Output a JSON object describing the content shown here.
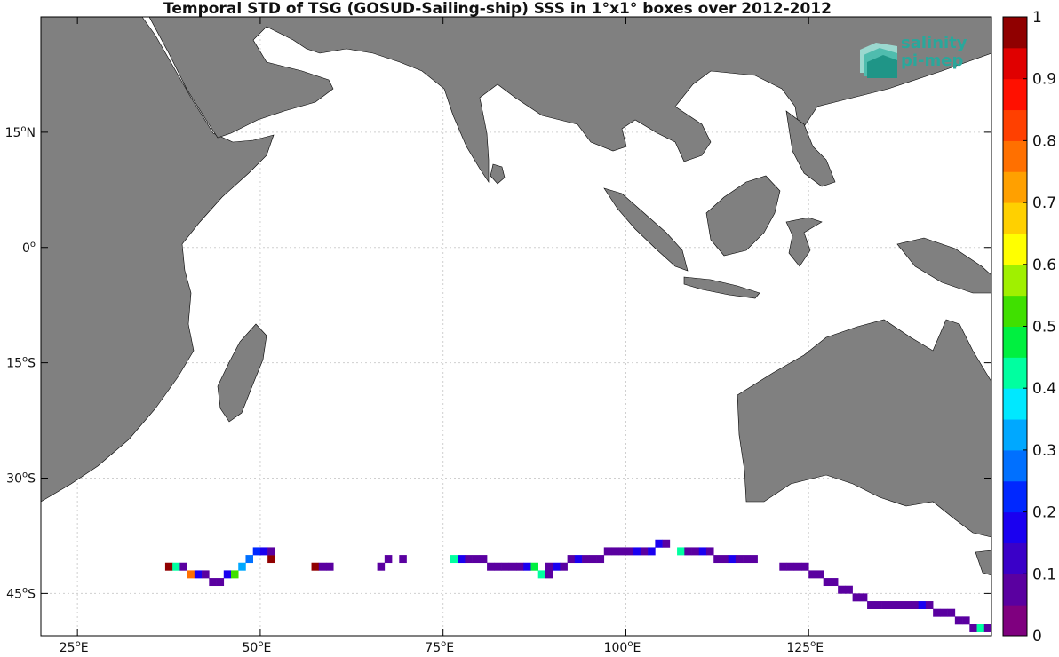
{
  "title": "Temporal STD of TSG (GOSUD-Sailing-ship) SSS in 1°x1° boxes over 2012-2012",
  "logo": {
    "line1": "salinity",
    "line2": "pi-mep"
  },
  "axes": {
    "lon_ticks": [
      "25",
      "50",
      "75",
      "100",
      "125"
    ],
    "lon_suffix": "E",
    "lat_ticks": [
      {
        "num": "15",
        "hem": "N",
        "lat": 15
      },
      {
        "num": "0",
        "hem": "",
        "lat": 0
      },
      {
        "num": "15",
        "hem": "S",
        "lat": -15
      },
      {
        "num": "30",
        "hem": "S",
        "lat": -30
      },
      {
        "num": "45",
        "hem": "S",
        "lat": -45
      }
    ],
    "lon_range": [
      20,
      150
    ],
    "lat_range": [
      -50.5,
      30
    ]
  },
  "colorbar": {
    "min": 0,
    "max": 1,
    "labels": [
      "0",
      "0.1",
      "0.2",
      "0.3",
      "0.4",
      "0.5",
      "0.6",
      "0.7",
      "0.8",
      "0.9",
      "1"
    ],
    "colors": [
      "#7f007f",
      "#5a00a0",
      "#3a00c8",
      "#1a00f0",
      "#0028ff",
      "#0070ff",
      "#00a8ff",
      "#00e8ff",
      "#00ffa0",
      "#00f040",
      "#40e000",
      "#a0f000",
      "#ffff00",
      "#ffd000",
      "#ffa000",
      "#ff7000",
      "#ff4000",
      "#ff1000",
      "#e00000",
      "#900000"
    ]
  },
  "colors": {
    "land": "#808080",
    "coast": "#000000",
    "grid": "#cfcfcf"
  },
  "chart_data": {
    "type": "heatmap",
    "title": "Temporal STD of TSG (GOSUD-Sailing-ship) SSS in 1°x1° boxes over 2012-2012",
    "cells": [
      [
        37.5,
        -41.5,
        0.95
      ],
      [
        38.5,
        -41.5,
        0.4
      ],
      [
        39.5,
        -41.5,
        0.05
      ],
      [
        40.5,
        -42.5,
        0.75
      ],
      [
        41.5,
        -42.5,
        0.15
      ],
      [
        42.5,
        -42.5,
        0.05
      ],
      [
        43.5,
        -43.5,
        0.05
      ],
      [
        44.5,
        -43.5,
        0.05
      ],
      [
        45.5,
        -42.5,
        0.15
      ],
      [
        46.5,
        -42.5,
        0.5
      ],
      [
        47.5,
        -41.5,
        0.3
      ],
      [
        48.5,
        -40.5,
        0.25
      ],
      [
        49.5,
        -39.5,
        0.2
      ],
      [
        50.5,
        -39.5,
        0.15
      ],
      [
        51.5,
        -40.5,
        0.95
      ],
      [
        51.5,
        -39.5,
        0.05
      ],
      [
        57.5,
        -41.5,
        0.95
      ],
      [
        58.5,
        -41.5,
        0.05
      ],
      [
        59.5,
        -41.5,
        0.05
      ],
      [
        66.5,
        -41.5,
        0.05
      ],
      [
        67.5,
        -40.5,
        0.05
      ],
      [
        69.5,
        -40.5,
        0.05
      ],
      [
        76.5,
        -40.5,
        0.4
      ],
      [
        77.5,
        -40.5,
        0.15
      ],
      [
        78.5,
        -40.5,
        0.05
      ],
      [
        79.5,
        -40.5,
        0.05
      ],
      [
        80.5,
        -40.5,
        0.05
      ],
      [
        81.5,
        -41.5,
        0.05
      ],
      [
        82.5,
        -41.5,
        0.05
      ],
      [
        83.5,
        -41.5,
        0.05
      ],
      [
        84.5,
        -41.5,
        0.05
      ],
      [
        85.5,
        -41.5,
        0.05
      ],
      [
        86.5,
        -41.5,
        0.15
      ],
      [
        87.5,
        -41.5,
        0.45
      ],
      [
        88.5,
        -42.5,
        0.4
      ],
      [
        89.5,
        -41.5,
        0.05
      ],
      [
        89.5,
        -42.5,
        0.05
      ],
      [
        90.5,
        -41.5,
        0.15
      ],
      [
        91.5,
        -41.5,
        0.05
      ],
      [
        92.5,
        -40.5,
        0.05
      ],
      [
        93.5,
        -40.5,
        0.15
      ],
      [
        94.5,
        -40.5,
        0.05
      ],
      [
        95.5,
        -40.5,
        0.05
      ],
      [
        96.5,
        -40.5,
        0.05
      ],
      [
        97.5,
        -39.5,
        0.05
      ],
      [
        98.5,
        -39.5,
        0.05
      ],
      [
        99.5,
        -39.5,
        0.05
      ],
      [
        100.5,
        -39.5,
        0.05
      ],
      [
        101.5,
        -39.5,
        0.15
      ],
      [
        102.5,
        -39.5,
        0.05
      ],
      [
        103.5,
        -39.5,
        0.15
      ],
      [
        104.5,
        -38.5,
        0.15
      ],
      [
        105.5,
        -38.5,
        0.05
      ],
      [
        107.5,
        -39.5,
        0.4
      ],
      [
        108.5,
        -39.5,
        0.05
      ],
      [
        109.5,
        -39.5,
        0.05
      ],
      [
        110.5,
        -39.5,
        0.15
      ],
      [
        111.5,
        -39.5,
        0.05
      ],
      [
        112.5,
        -40.5,
        0.05
      ],
      [
        113.5,
        -40.5,
        0.05
      ],
      [
        114.5,
        -40.5,
        0.15
      ],
      [
        115.5,
        -40.5,
        0.05
      ],
      [
        116.5,
        -40.5,
        0.05
      ],
      [
        117.5,
        -40.5,
        0.05
      ],
      [
        121.5,
        -41.5,
        0.05
      ],
      [
        122.5,
        -41.5,
        0.05
      ],
      [
        123.5,
        -41.5,
        0.05
      ],
      [
        124.5,
        -41.5,
        0.05
      ],
      [
        125.5,
        -42.5,
        0.05
      ],
      [
        126.5,
        -42.5,
        0.05
      ],
      [
        127.5,
        -43.5,
        0.05
      ],
      [
        128.5,
        -43.5,
        0.05
      ],
      [
        129.5,
        -44.5,
        0.05
      ],
      [
        130.5,
        -44.5,
        0.05
      ],
      [
        131.5,
        -45.5,
        0.05
      ],
      [
        132.5,
        -45.5,
        0.05
      ],
      [
        133.5,
        -46.5,
        0.05
      ],
      [
        134.5,
        -46.5,
        0.05
      ],
      [
        135.5,
        -46.5,
        0.05
      ],
      [
        136.5,
        -46.5,
        0.05
      ],
      [
        137.5,
        -46.5,
        0.05
      ],
      [
        138.5,
        -46.5,
        0.05
      ],
      [
        139.5,
        -46.5,
        0.05
      ],
      [
        140.5,
        -46.5,
        0.15
      ],
      [
        141.5,
        -46.5,
        0.05
      ],
      [
        142.5,
        -47.5,
        0.05
      ],
      [
        143.5,
        -47.5,
        0.05
      ],
      [
        144.5,
        -47.5,
        0.05
      ],
      [
        145.5,
        -48.5,
        0.05
      ],
      [
        146.5,
        -48.5,
        0.05
      ],
      [
        147.5,
        -49.5,
        0.05
      ],
      [
        148.5,
        -49.5,
        0.4
      ],
      [
        149.5,
        -49.5,
        0.05
      ]
    ]
  }
}
